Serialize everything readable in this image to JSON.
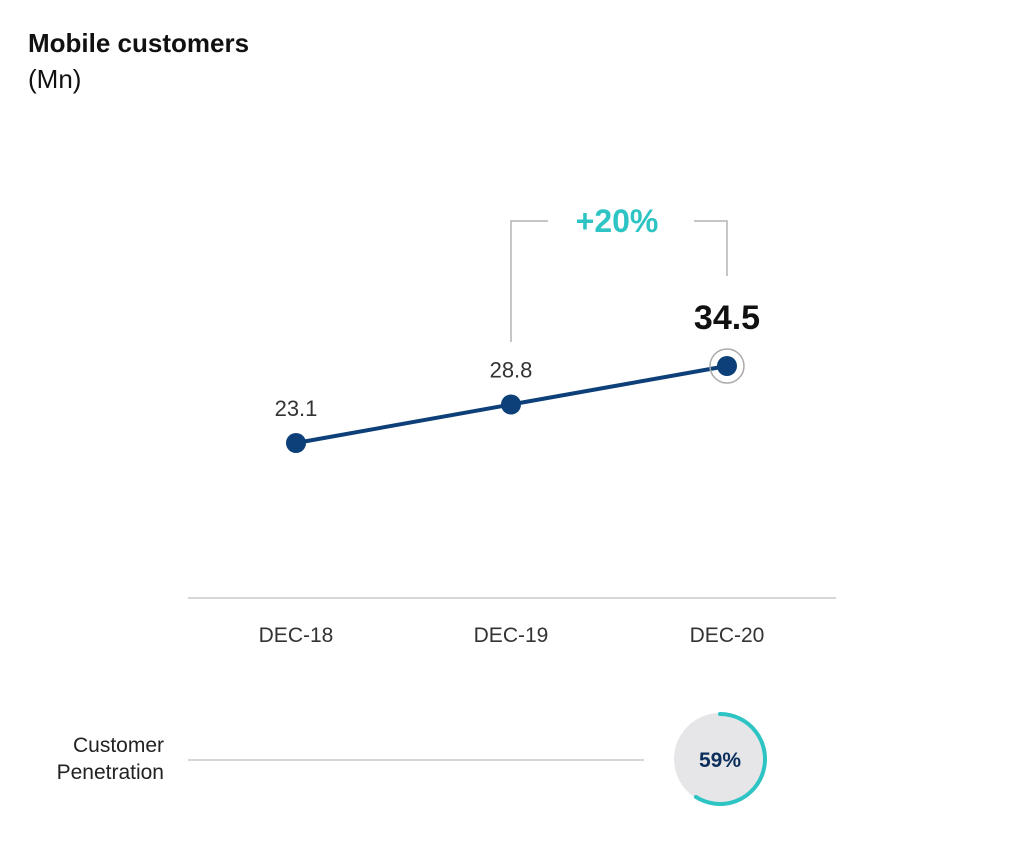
{
  "title": "Mobile customers",
  "unit": "(Mn)",
  "chart_data": {
    "type": "line",
    "categories": [
      "DEC-18",
      "DEC-19",
      "DEC-20"
    ],
    "series": [
      {
        "values": [
          23.1,
          28.8,
          34.5
        ]
      }
    ],
    "value_labels": [
      "23.1",
      "28.8",
      "34.5"
    ],
    "highlight_index": 2,
    "ylim": [
      0,
      40
    ],
    "grid": false,
    "legend": "none",
    "annotation": {
      "text": "+20%",
      "from": "DEC-19",
      "to": "DEC-20"
    },
    "colors": {
      "line": "#0d3f78",
      "accent": "#2ec4c4",
      "axis": "#c8c8c8",
      "bracket": "#b3b3b3"
    }
  },
  "penetration": {
    "label_line1": "Customer",
    "label_line2": "Penetration",
    "value": 0.59,
    "value_text": "59%",
    "category": "DEC-20",
    "colors": {
      "ring": "#2ec4c4",
      "fill": "#e6e6e8",
      "text": "#0b2e5c"
    }
  }
}
